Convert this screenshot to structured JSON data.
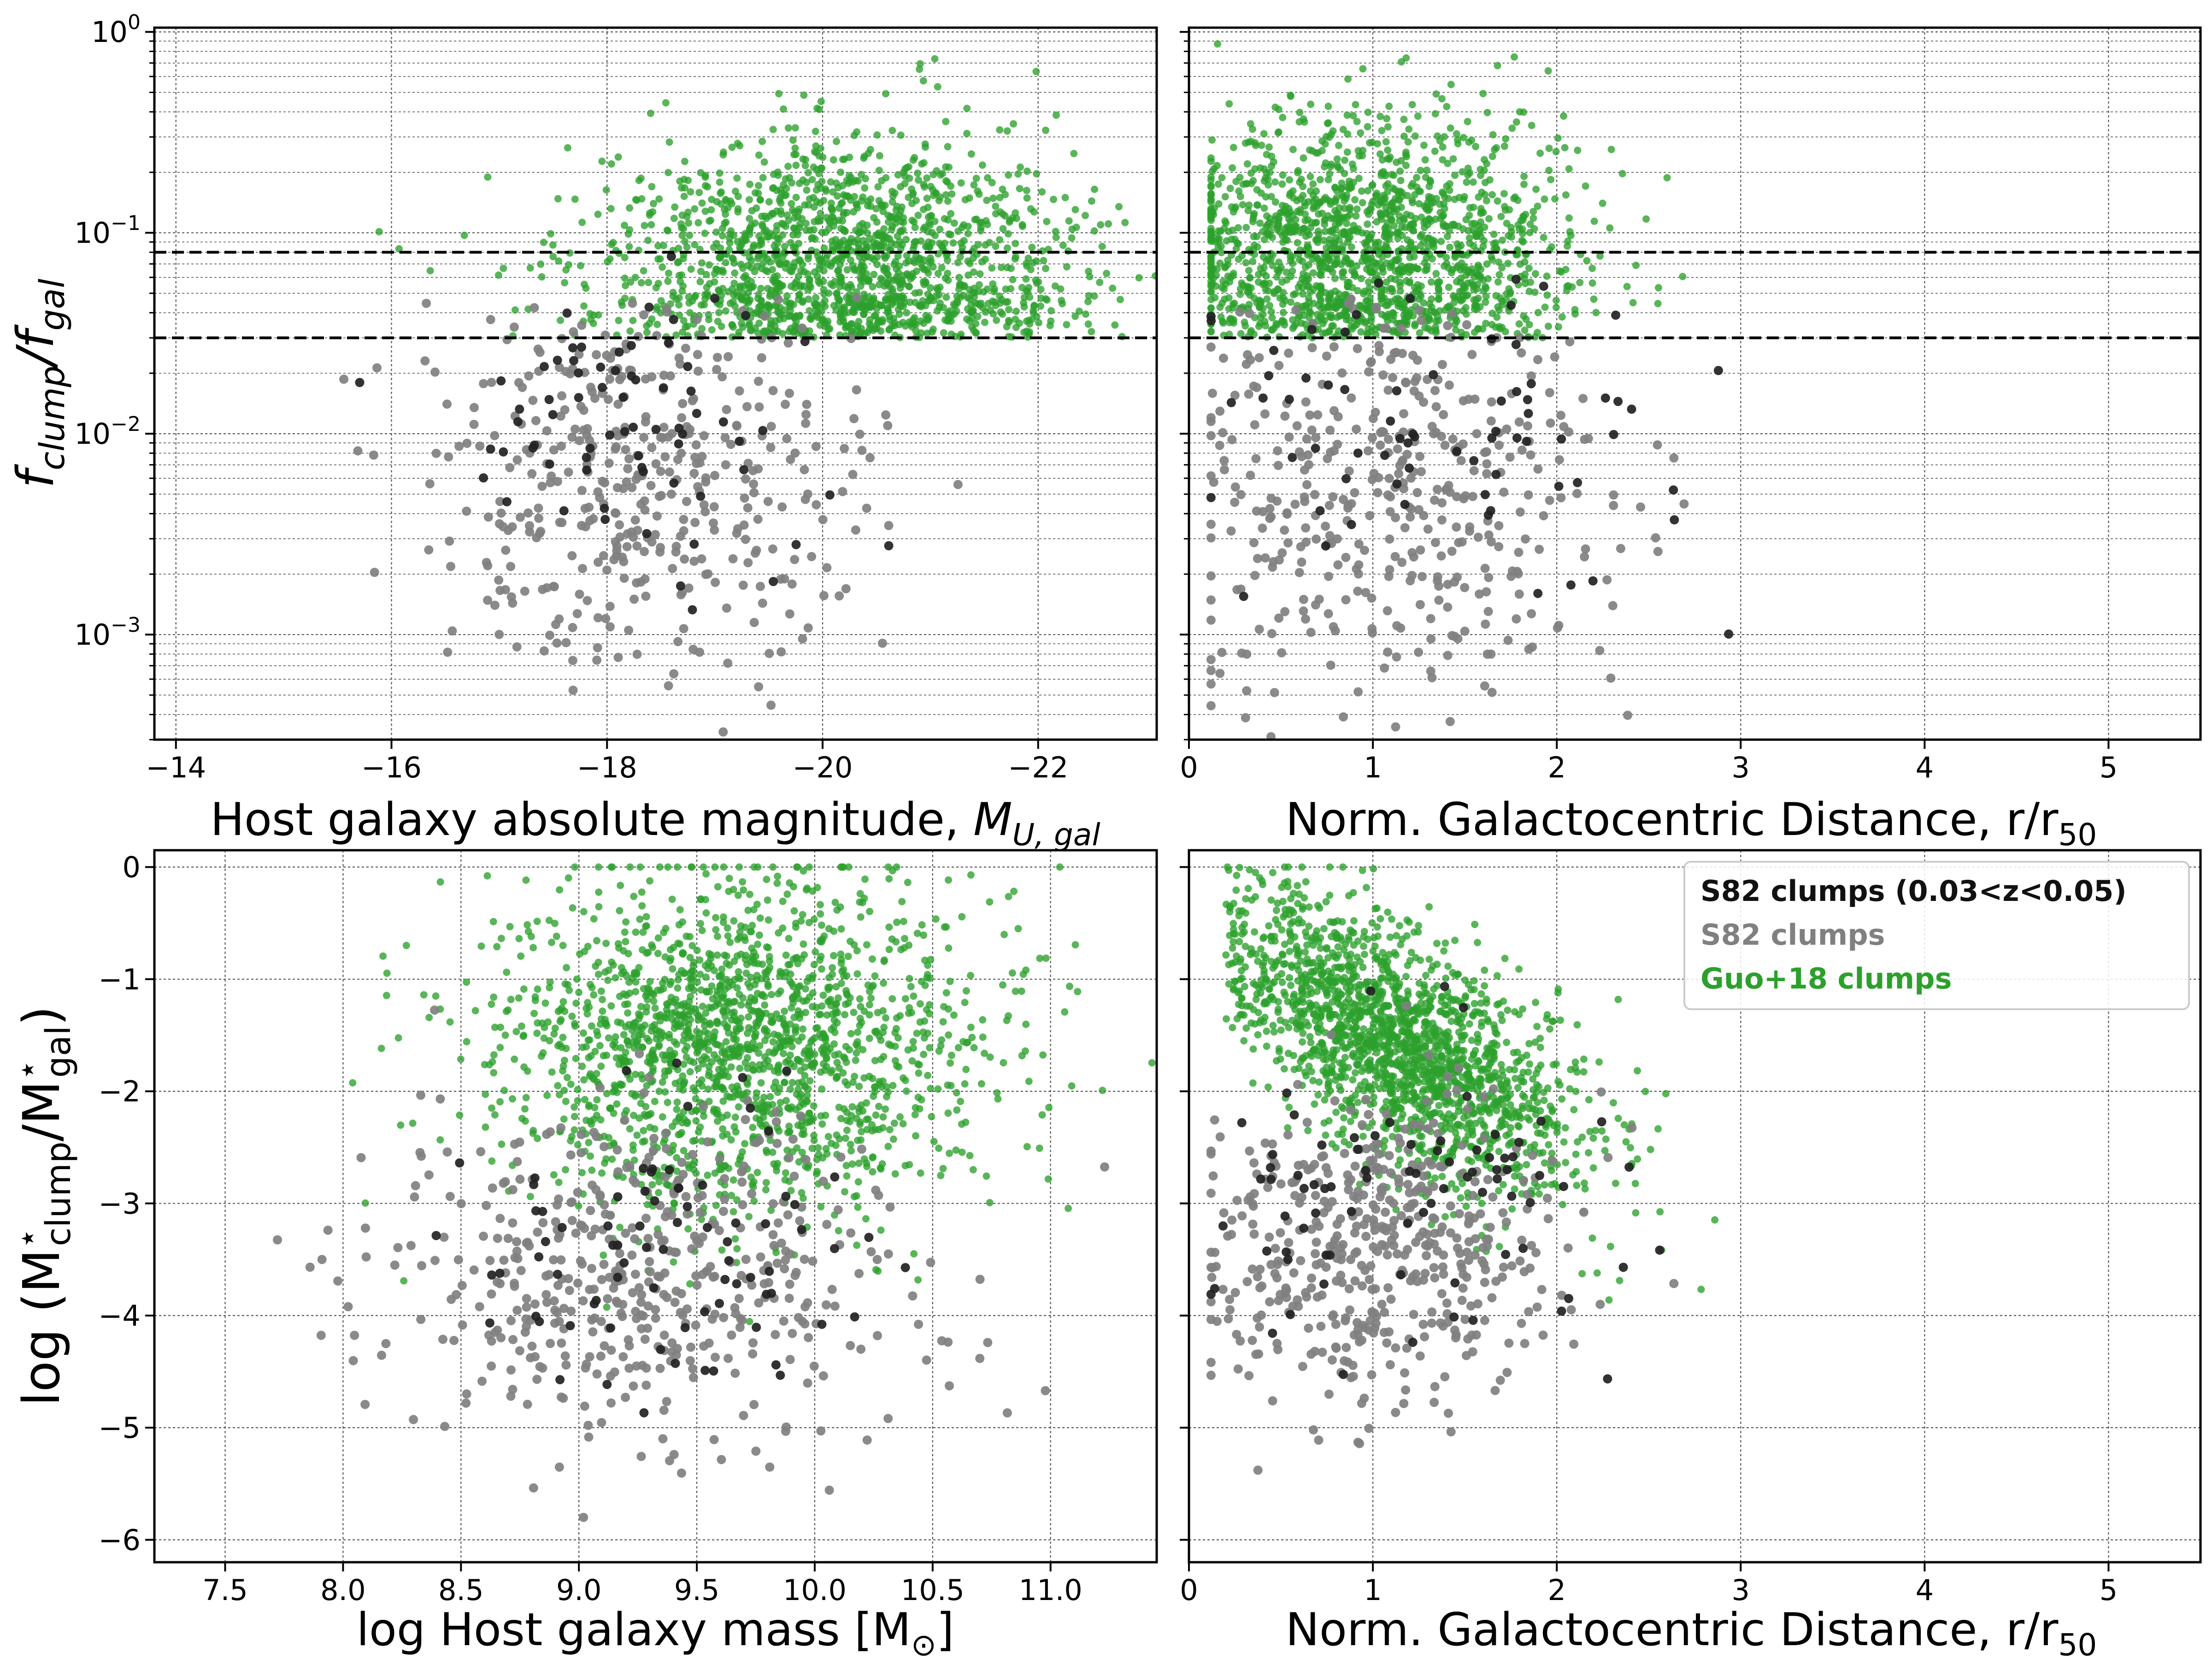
{
  "figure": {
    "legend": {
      "placement": "upper right of bottom-right panel",
      "entries": [
        {
          "label": "S82 clumps (0.03<z<0.05)",
          "color": "#222222"
        },
        {
          "label": "S82 clumps",
          "color": "#808080"
        },
        {
          "label": "Guo+18 clumps",
          "color": "#2ca02c"
        }
      ]
    },
    "colors": {
      "s82_sub": "#222222",
      "s82": "#808080",
      "guo18": "#2ca02c",
      "threshold_line": "#000000"
    }
  },
  "chart_data": [
    {
      "id": "top_left",
      "type": "scatter",
      "xlabel": "Host galaxy absolute magnitude, M_U,gal",
      "ylabel": "f_clump/f_gal",
      "xlim": [
        -13.8,
        -23.1
      ],
      "ylim": [
        0.0003,
        1.05
      ],
      "yscale": "log",
      "grid": true,
      "xticks": [
        -14,
        -16,
        -18,
        -20,
        -22
      ],
      "xtick_labels": [
        "−14",
        "−16",
        "−18",
        "−20",
        "−22"
      ],
      "yticks": [
        0.001,
        0.01,
        0.1,
        1
      ],
      "hlines": [
        0.08,
        0.03
      ],
      "series": [
        {
          "name": "Guo+18 clumps",
          "color": "#2ca02c",
          "n": 1600,
          "x_center": -20.2,
          "x_spread": 1.1,
          "y_log_center": -1.15,
          "y_log_spread": 0.32,
          "y_min": 0.03
        },
        {
          "name": "S82 clumps",
          "color": "#808080",
          "n": 420,
          "x_center": -18.3,
          "x_spread": 1.0,
          "y_log_center": -2.25,
          "y_log_spread": 0.5,
          "y_max": 0.05
        },
        {
          "name": "S82 clumps (0.03<z<0.05)",
          "color": "#222222",
          "n": 70,
          "x_center": -18.2,
          "x_spread": 0.9,
          "y_log_center": -1.95,
          "y_log_spread": 0.35,
          "y_max": 0.08
        }
      ]
    },
    {
      "id": "top_right",
      "type": "scatter",
      "xlabel": "Norm. Galactocentric Distance, r/r_50",
      "ylabel": "",
      "xlim": [
        0,
        5.5
      ],
      "ylim": [
        0.0003,
        1.05
      ],
      "yscale": "log",
      "grid": true,
      "xticks": [
        0,
        1,
        2,
        3,
        4,
        5
      ],
      "xtick_labels": [
        "0",
        "1",
        "2",
        "3",
        "4",
        "5"
      ],
      "hlines": [
        0.08,
        0.03
      ],
      "series": [
        {
          "name": "Guo+18 clumps",
          "color": "#2ca02c",
          "n": 1600,
          "x_center": 0.95,
          "x_spread": 0.55,
          "y_log_center": -1.1,
          "y_log_spread": 0.32,
          "y_min": 0.03
        },
        {
          "name": "S82 clumps",
          "color": "#808080",
          "n": 420,
          "x_center": 1.1,
          "x_spread": 0.6,
          "y_log_center": -2.3,
          "y_log_spread": 0.5,
          "y_max": 0.05
        },
        {
          "name": "S82 clumps (0.03<z<0.05)",
          "color": "#222222",
          "n": 70,
          "x_center": 1.3,
          "x_spread": 0.7,
          "y_log_center": -2.0,
          "y_log_spread": 0.4,
          "y_max": 0.08
        }
      ]
    },
    {
      "id": "bottom_left",
      "type": "scatter",
      "xlabel": "log Host galaxy mass [M_sun]",
      "ylabel": "log (M*_clump/M*_gal)",
      "xlim": [
        7.2,
        11.45
      ],
      "ylim": [
        -6.2,
        0.15
      ],
      "yscale": "linear",
      "grid": true,
      "xticks": [
        7.5,
        8.0,
        8.5,
        9.0,
        9.5,
        10.0,
        10.5,
        11.0
      ],
      "xtick_labels": [
        "7.5",
        "8.0",
        "8.5",
        "9.0",
        "9.5",
        "10.0",
        "10.5",
        "11.0"
      ],
      "yticks": [
        0,
        -1,
        -2,
        -3,
        -4,
        -5,
        -6
      ],
      "ytick_labels": [
        "0",
        "−1",
        "−2",
        "−3",
        "−4",
        "−5",
        "−6"
      ],
      "series": [
        {
          "name": "Guo+18 clumps",
          "color": "#2ca02c",
          "n": 1800,
          "x_center": 9.7,
          "x_spread": 0.5,
          "y_center": -1.6,
          "y_spread": 0.75
        },
        {
          "name": "S82 clumps",
          "color": "#808080",
          "n": 480,
          "x_center": 9.3,
          "x_spread": 0.55,
          "y_center": -3.6,
          "y_spread": 0.75
        },
        {
          "name": "S82 clumps (0.03<z<0.05)",
          "color": "#222222",
          "n": 80,
          "x_center": 9.3,
          "x_spread": 0.45,
          "y_center": -3.3,
          "y_spread": 0.6
        }
      ]
    },
    {
      "id": "bottom_right",
      "type": "scatter",
      "xlabel": "Norm. Galactocentric Distance, r/r_50",
      "ylabel": "",
      "xlim": [
        0,
        5.5
      ],
      "ylim": [
        -6.2,
        0.15
      ],
      "yscale": "linear",
      "grid": true,
      "xticks": [
        0,
        1,
        2,
        3,
        4,
        5
      ],
      "xtick_labels": [
        "0",
        "1",
        "2",
        "3",
        "4",
        "5"
      ],
      "series": [
        {
          "name": "Guo+18 clumps",
          "color": "#2ca02c",
          "n": 1800,
          "x_center": 0.95,
          "x_spread": 0.5,
          "y_slope": -0.85,
          "y_intercept": -0.6,
          "y_spread": 0.5
        },
        {
          "name": "S82 clumps",
          "color": "#808080",
          "n": 480,
          "x_center": 1.0,
          "x_spread": 0.5,
          "y_center": -3.4,
          "y_spread": 0.7
        },
        {
          "name": "S82 clumps (0.03<z<0.05)",
          "color": "#222222",
          "n": 80,
          "x_center": 1.2,
          "x_spread": 0.6,
          "y_center": -3.0,
          "y_spread": 0.7
        }
      ]
    }
  ],
  "labels": {
    "top_left_x": "Host galaxy absolute magnitude, ",
    "top_left_x_sym": "M",
    "top_left_x_sub": "U, gal",
    "top_left_y_sym1": "f",
    "top_left_y_sub1": "clump",
    "top_left_y_slash": "/",
    "top_left_y_sym2": "f",
    "top_left_y_sub2": "gal",
    "dist_x": "Norm. Galactocentric Distance, r/r",
    "dist_x_sub": "50",
    "mass_x": "log Host galaxy mass [M",
    "mass_x_sub": "⊙",
    "mass_x_end": "]",
    "mass_y_pre": "log (M",
    "mass_y_sub1": "clump",
    "mass_y_mid": "/M",
    "mass_y_sub2": "gal",
    "mass_y_end": ")",
    "star": "⋆",
    "log_ticks": [
      "10",
      "10",
      "10",
      "10"
    ],
    "log_exps": [
      "−3",
      "−2",
      "−1",
      "0"
    ]
  }
}
